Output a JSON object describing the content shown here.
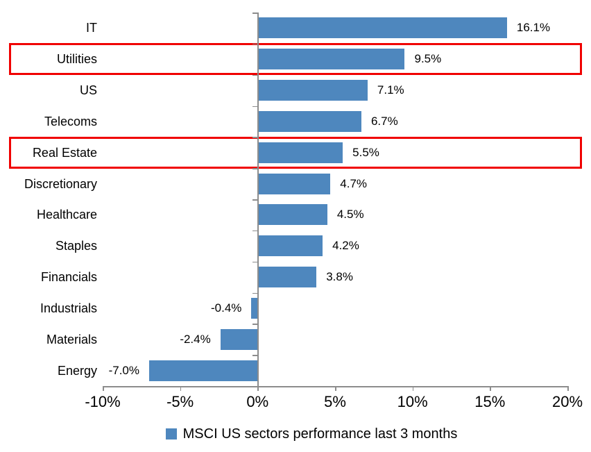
{
  "chart_data": {
    "type": "bar",
    "orientation": "horizontal",
    "title": "",
    "categories": [
      "IT",
      "Utilities",
      "US",
      "Telecoms",
      "Real Estate",
      "Discretionary",
      "Healthcare",
      "Staples",
      "Financials",
      "Industrials",
      "Materials",
      "Energy"
    ],
    "values": [
      16.1,
      9.5,
      7.1,
      6.7,
      5.5,
      4.7,
      4.5,
      4.2,
      3.8,
      -0.4,
      -2.4,
      -7.0
    ],
    "value_labels": [
      "16.1%",
      "9.5%",
      "7.1%",
      "6.7%",
      "5.5%",
      "4.7%",
      "4.5%",
      "4.2%",
      "3.8%",
      "-0.4%",
      "-2.4%",
      "-7.0%"
    ],
    "xlim": [
      -10,
      20
    ],
    "x_tick_values": [
      -10,
      -5,
      0,
      5,
      10,
      15,
      20
    ],
    "x_tick_labels": [
      "-10%",
      "-5%",
      "0%",
      "5%",
      "10%",
      "15%",
      "20%"
    ],
    "grid": "off",
    "legend_position": "bottom",
    "legend": {
      "label": "MSCI US sectors performance last 3 months"
    },
    "highlighted_categories": [
      "Utilities",
      "Real Estate"
    ],
    "colors": {
      "bar": "#4E87BE",
      "highlight_border": "#F00000",
      "axis": "#8C8C8C",
      "text": "#000000"
    }
  }
}
